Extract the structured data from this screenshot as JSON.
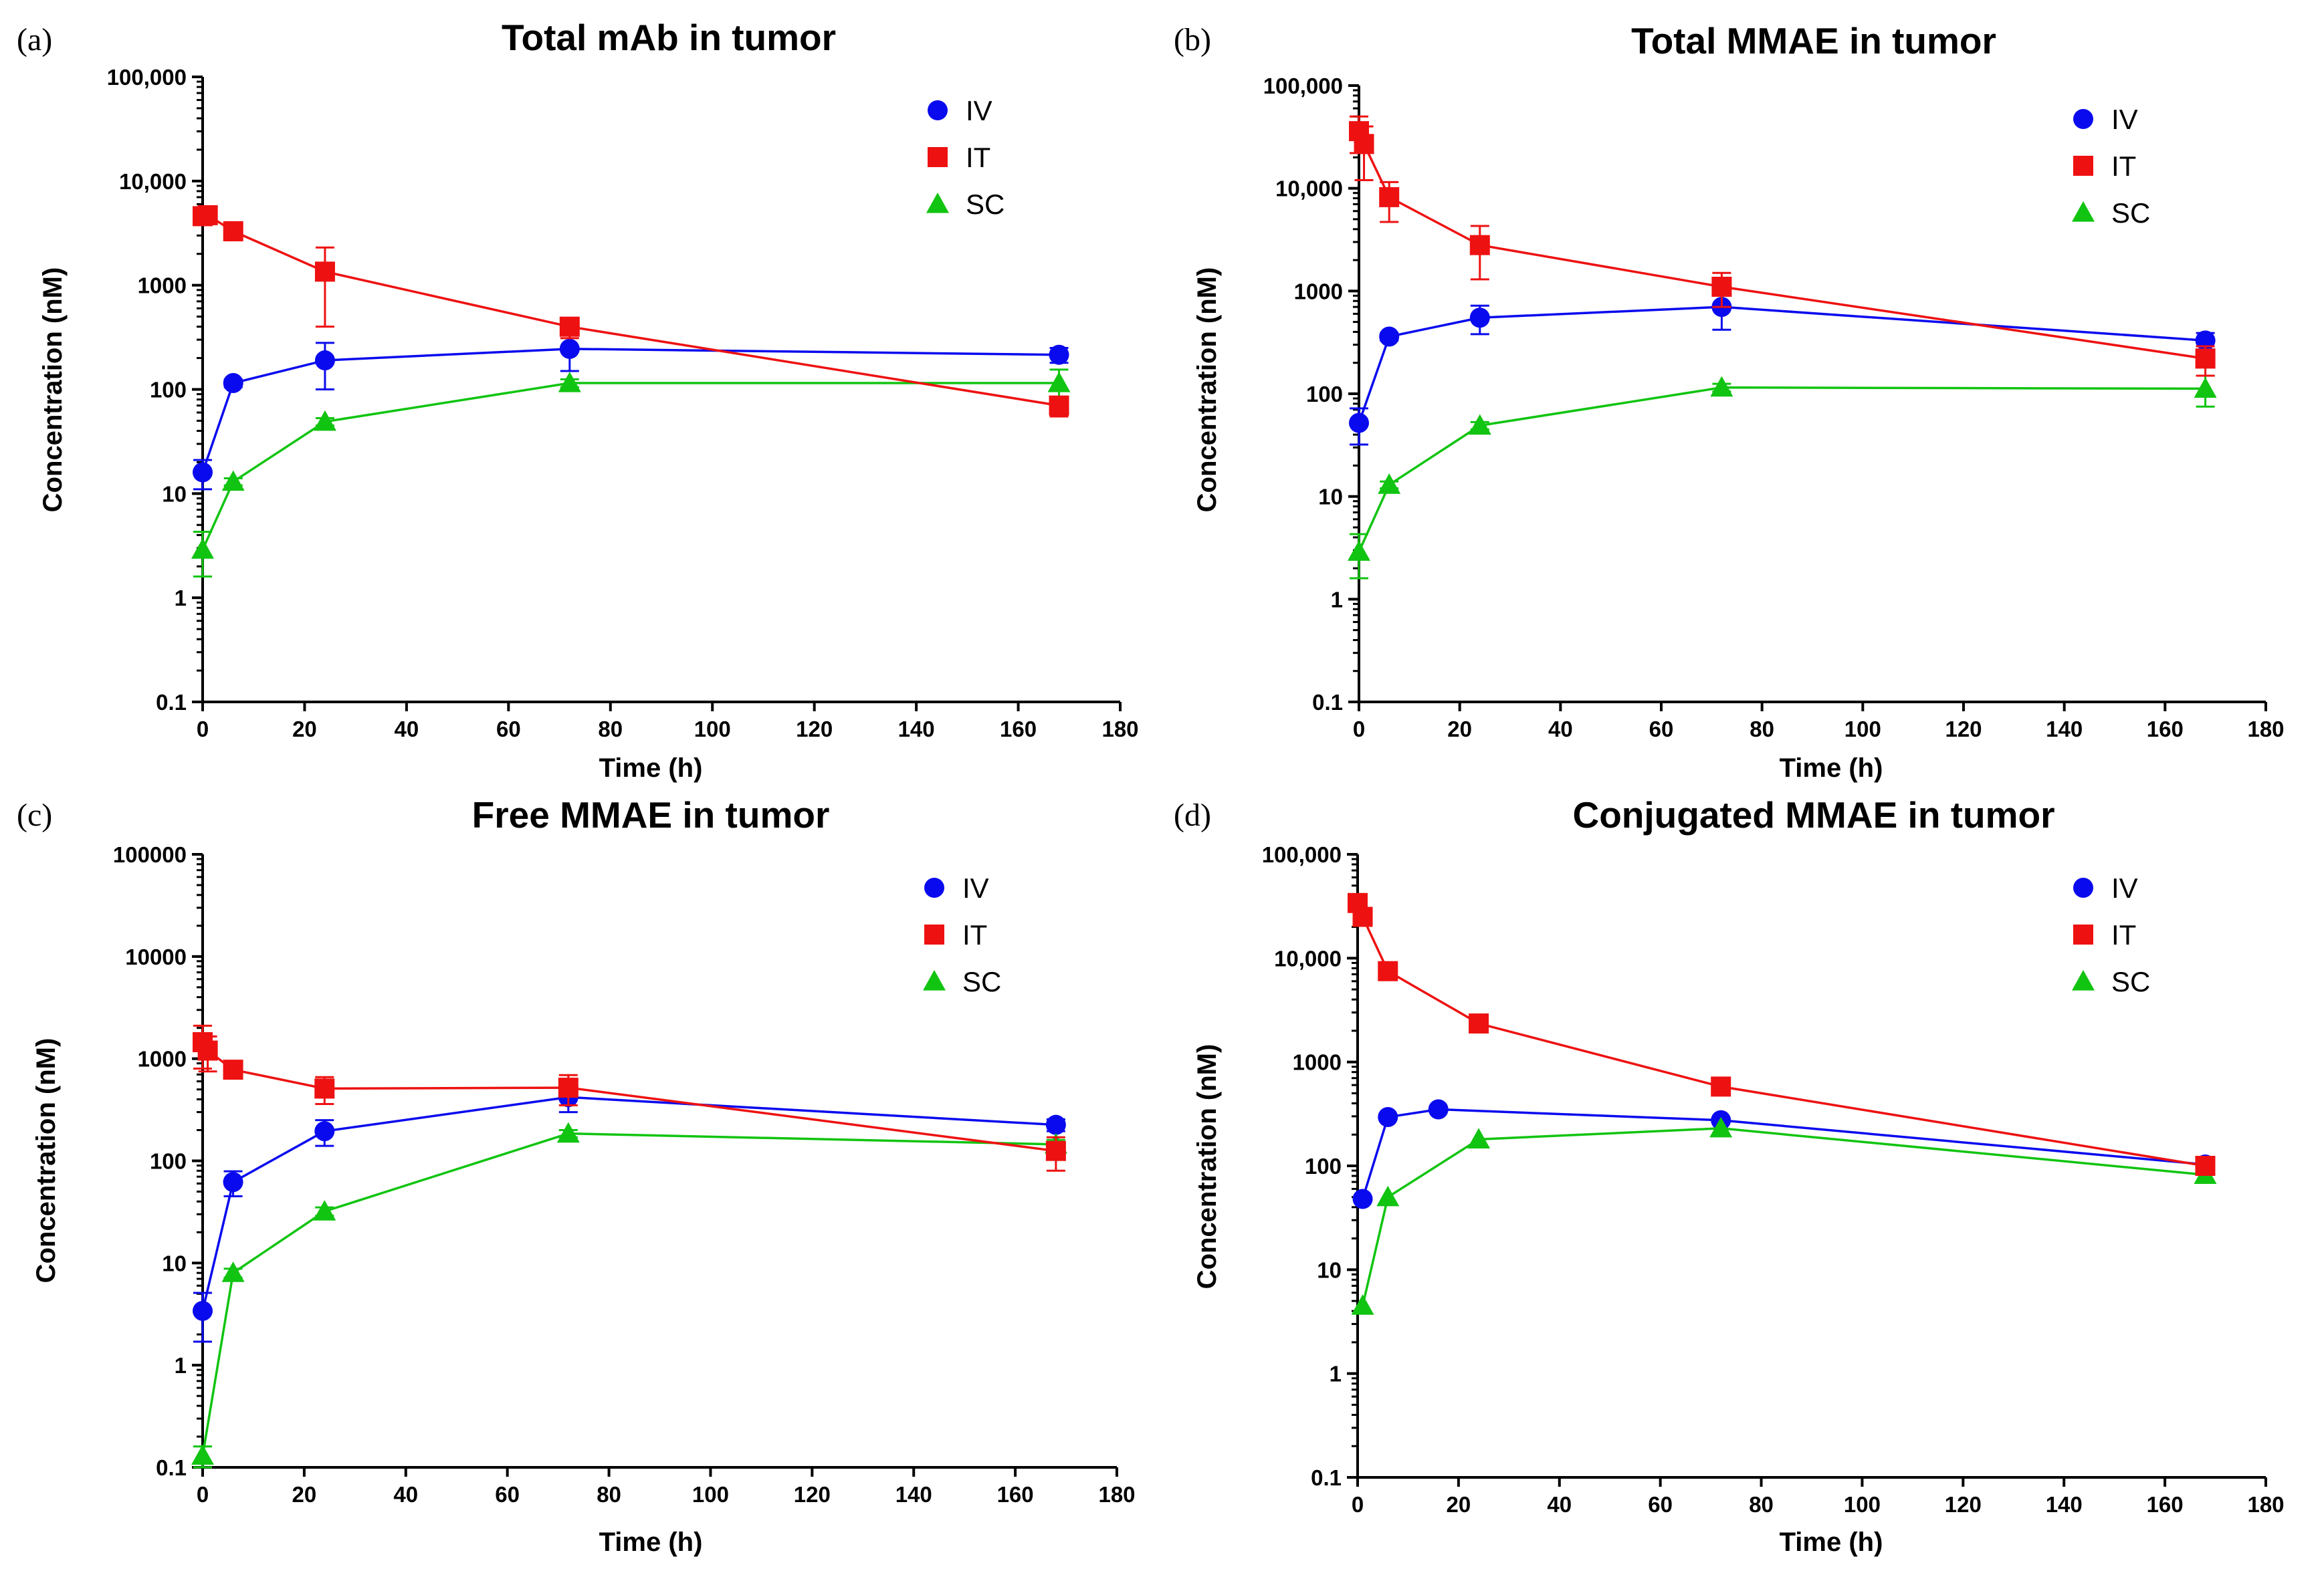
{
  "colors": {
    "IV": "#0a0aee",
    "IT": "#ee1111",
    "SC": "#11c411",
    "axis": "#000000"
  },
  "chart_data": [
    {
      "letter": "(a)",
      "type": "line",
      "title": "Total mAb in tumor",
      "xlabel": "Time (h)",
      "ylabel": "Concentration (nM)",
      "xscale": "linear",
      "yscale": "log",
      "xlim": [
        0,
        180
      ],
      "ylim": [
        0.1,
        100000
      ],
      "xticks": [
        "0",
        "20",
        "40",
        "60",
        "80",
        "100",
        "120",
        "140",
        "160",
        "180"
      ],
      "yticks": [
        "0.1",
        "1",
        "10",
        "100",
        "1000",
        "10,000",
        "100,000"
      ],
      "legend_position": "top-right",
      "series": [
        {
          "name": "IV",
          "marker": "circle",
          "x": [
            0,
            6,
            24,
            72,
            168
          ],
          "y": [
            16,
            115,
            190,
            245,
            215
          ],
          "err_lo": [
            11,
            105,
            100,
            150,
            180
          ],
          "err_hi": [
            21,
            125,
            280,
            330,
            250
          ]
        },
        {
          "name": "IT",
          "marker": "square",
          "x": [
            0,
            1,
            6,
            24,
            72,
            168
          ],
          "y": [
            4600,
            4700,
            3300,
            1350,
            400,
            70
          ],
          "err_lo": [
            4100,
            4200,
            2700,
            400,
            310,
            55
          ],
          "err_hi": [
            5100,
            5200,
            3900,
            2300,
            480,
            85
          ]
        },
        {
          "name": "SC",
          "marker": "triangle",
          "x": [
            0,
            6,
            24,
            72,
            168
          ],
          "y": [
            2.9,
            13,
            49,
            115,
            115
          ],
          "err_lo": [
            1.6,
            12,
            45,
            105,
            75
          ],
          "err_hi": [
            4.3,
            14,
            53,
            125,
            155
          ]
        }
      ]
    },
    {
      "letter": "(b)",
      "type": "line",
      "title": "Total MMAE in tumor",
      "xlabel": "Time (h)",
      "ylabel": "Concentration (nM)",
      "xscale": "linear",
      "yscale": "log",
      "xlim": [
        0,
        180
      ],
      "ylim": [
        0.1,
        100000
      ],
      "xticks": [
        "0",
        "20",
        "40",
        "60",
        "80",
        "100",
        "120",
        "140",
        "160",
        "180"
      ],
      "yticks": [
        "0.1",
        "1",
        "10",
        "100",
        "1000",
        "10,000",
        "100,000"
      ],
      "legend_position": "top-right",
      "series": [
        {
          "name": "IV",
          "marker": "circle",
          "x": [
            0,
            6,
            24,
            72,
            168
          ],
          "y": [
            52,
            360,
            550,
            700,
            330
          ],
          "err_lo": [
            32,
            330,
            380,
            420,
            270
          ],
          "err_hi": [
            72,
            390,
            720,
            980,
            390
          ]
        },
        {
          "name": "IT",
          "marker": "square",
          "x": [
            0,
            1,
            6,
            24,
            72,
            168
          ],
          "y": [
            36000,
            27000,
            8200,
            2800,
            1100,
            220
          ],
          "err_lo": [
            22000,
            12000,
            4700,
            1300,
            700,
            150
          ],
          "err_hi": [
            50000,
            40000,
            11500,
            4300,
            1500,
            290
          ]
        },
        {
          "name": "SC",
          "marker": "triangle",
          "x": [
            0,
            6,
            24,
            72,
            168
          ],
          "y": [
            2.9,
            13,
            49,
            115,
            112
          ],
          "err_lo": [
            1.6,
            12,
            45,
            105,
            75
          ],
          "err_hi": [
            4.3,
            14,
            53,
            125,
            150
          ]
        }
      ]
    },
    {
      "letter": "(c)",
      "type": "line",
      "title": "Free MMAE in tumor",
      "xlabel": "Time (h)",
      "ylabel": "Concentration (nM)",
      "xscale": "linear",
      "yscale": "log",
      "xlim": [
        0,
        180
      ],
      "ylim": [
        0.1,
        100000
      ],
      "xticks": [
        "0",
        "20",
        "40",
        "60",
        "80",
        "100",
        "120",
        "140",
        "160",
        "180"
      ],
      "yticks": [
        "0.1",
        "1",
        "10",
        "100",
        "1000",
        "10000",
        "100000"
      ],
      "legend_position": "top-right",
      "series": [
        {
          "name": "IV",
          "marker": "circle",
          "x": [
            0,
            6,
            24,
            72,
            168
          ],
          "y": [
            3.4,
            62,
            195,
            420,
            225
          ],
          "err_lo": [
            1.7,
            45,
            140,
            300,
            195
          ],
          "err_hi": [
            5.1,
            79,
            250,
            540,
            255
          ]
        },
        {
          "name": "IT",
          "marker": "square",
          "x": [
            0,
            1,
            6,
            24,
            72,
            168
          ],
          "y": [
            1450,
            1200,
            780,
            510,
            520,
            125
          ],
          "err_lo": [
            800,
            750,
            700,
            360,
            350,
            80
          ],
          "err_hi": [
            2100,
            1650,
            860,
            660,
            690,
            170
          ]
        },
        {
          "name": "SC",
          "marker": "triangle",
          "x": [
            0,
            6,
            24,
            72,
            168
          ],
          "y": [
            0.13,
            8,
            32,
            185,
            145
          ],
          "err_lo": [
            0.1,
            7.2,
            29,
            170,
            130
          ],
          "err_hi": [
            0.16,
            8.8,
            35,
            200,
            160
          ]
        }
      ]
    },
    {
      "letter": "(d)",
      "type": "line",
      "title": "Conjugated MMAE in tumor",
      "xlabel": "Time (h)",
      "ylabel": "Concentration (nM)",
      "xscale": "linear",
      "yscale": "log",
      "xlim": [
        0,
        180
      ],
      "ylim": [
        0.1,
        100000
      ],
      "xticks": [
        "0",
        "20",
        "40",
        "60",
        "80",
        "100",
        "120",
        "140",
        "160",
        "180"
      ],
      "yticks": [
        "0.1",
        "1",
        "10",
        "100",
        "1000",
        "10,000",
        "100,000"
      ],
      "legend_position": "top-right",
      "series": [
        {
          "name": "IV",
          "marker": "circle",
          "x": [
            1,
            6,
            16,
            72,
            168
          ],
          "y": [
            48,
            295,
            350,
            275,
            103
          ],
          "err_lo": [],
          "err_hi": []
        },
        {
          "name": "IT",
          "marker": "square",
          "x": [
            0,
            1,
            6,
            24,
            72,
            168
          ],
          "y": [
            34000,
            25000,
            7500,
            2350,
            580,
            100
          ],
          "err_lo": [],
          "err_hi": []
        },
        {
          "name": "SC",
          "marker": "triangle",
          "x": [
            1,
            6,
            24,
            72,
            168
          ],
          "y": [
            4.5,
            50,
            180,
            230,
            82
          ],
          "err_lo": [],
          "err_hi": []
        }
      ]
    }
  ]
}
